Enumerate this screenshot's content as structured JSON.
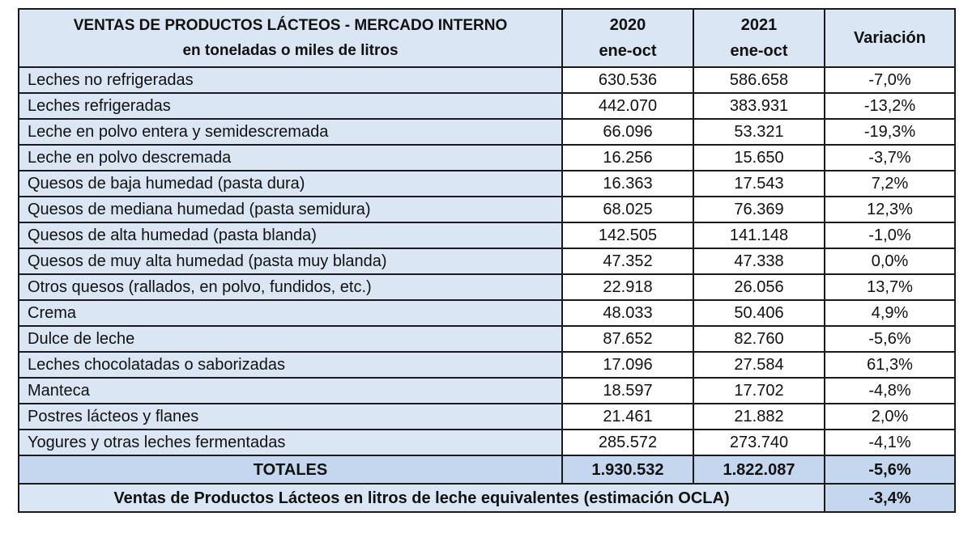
{
  "table": {
    "header": {
      "title_line1": "VENTAS DE PRODUCTOS LÁCTEOS - MERCADO INTERNO",
      "title_line2": "en toneladas o miles de litros",
      "col_2020_year": "2020",
      "col_2020_period": "ene-oct",
      "col_2021_year": "2021",
      "col_2021_period": "ene-oct",
      "col_variation": "Variación"
    },
    "rows": [
      {
        "product": "Leches no refrigeradas",
        "v2020": "630.536",
        "v2021": "586.658",
        "variation": "-7,0%"
      },
      {
        "product": "Leches refrigeradas",
        "v2020": "442.070",
        "v2021": "383.931",
        "variation": "-13,2%"
      },
      {
        "product": "Leche en polvo entera y semidescremada",
        "v2020": "66.096",
        "v2021": "53.321",
        "variation": "-19,3%"
      },
      {
        "product": "Leche en polvo descremada",
        "v2020": "16.256",
        "v2021": "15.650",
        "variation": "-3,7%"
      },
      {
        "product": "Quesos de baja humedad (pasta dura)",
        "v2020": "16.363",
        "v2021": "17.543",
        "variation": "7,2%"
      },
      {
        "product": "Quesos de mediana humedad (pasta semidura)",
        "v2020": "68.025",
        "v2021": "76.369",
        "variation": "12,3%"
      },
      {
        "product": "Quesos de alta humedad (pasta blanda)",
        "v2020": "142.505",
        "v2021": "141.148",
        "variation": "-1,0%"
      },
      {
        "product": "Quesos de muy alta humedad (pasta muy blanda)",
        "v2020": "47.352",
        "v2021": "47.338",
        "variation": "0,0%"
      },
      {
        "product": "Otros quesos (rallados, en polvo, fundidos, etc.)",
        "v2020": "22.918",
        "v2021": "26.056",
        "variation": "13,7%"
      },
      {
        "product": "Crema",
        "v2020": "48.033",
        "v2021": "50.406",
        "variation": "4,9%"
      },
      {
        "product": "Dulce de leche",
        "v2020": "87.652",
        "v2021": "82.760",
        "variation": "-5,6%"
      },
      {
        "product": "Leches chocolatadas o saborizadas",
        "v2020": "17.096",
        "v2021": "27.584",
        "variation": "61,3%"
      },
      {
        "product": "Manteca",
        "v2020": "18.597",
        "v2021": "17.702",
        "variation": "-4,8%"
      },
      {
        "product": "Postres lácteos y flanes",
        "v2020": "21.461",
        "v2021": "21.882",
        "variation": "2,0%"
      },
      {
        "product": "Yogures y otras leches fermentadas",
        "v2020": "285.572",
        "v2021": "273.740",
        "variation": "-4,1%"
      }
    ],
    "totals": {
      "label": "TOTALES",
      "v2020": "1.930.532",
      "v2021": "1.822.087",
      "variation": "-5,6%"
    },
    "footer": {
      "label": "Ventas de Productos Lácteos en litros de leche equivalentes (estimación OCLA)",
      "variation": "-3,4%"
    }
  },
  "colors": {
    "header_bg": "#dbe6f4",
    "total_bg": "#c5d6ef",
    "border": "#1a1a1a"
  }
}
